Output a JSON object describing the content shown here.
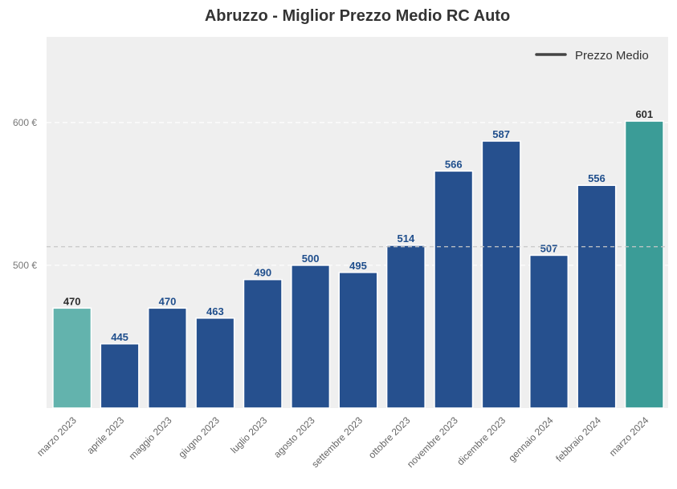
{
  "chart_data": {
    "type": "bar",
    "title": "Abruzzo - Miglior Prezzo Medio RC Auto",
    "xlabel": "",
    "ylabel": "",
    "categories": [
      "marzo 2023",
      "aprile 2023",
      "maggio 2023",
      "giugno 2023",
      "luglio 2023",
      "agosto 2023",
      "settembre 2023",
      "ottobre 2023",
      "novembre 2023",
      "dicembre 2023",
      "gennaio 2024",
      "febbraio 2024",
      "marzo 2024"
    ],
    "values": [
      470,
      445,
      470,
      463,
      490,
      500,
      495,
      514,
      566,
      587,
      507,
      556,
      601
    ],
    "value_labels": [
      "470",
      "445",
      "470",
      "463",
      "490",
      "500",
      "495",
      "514",
      "566",
      "587",
      "507",
      "556",
      "601"
    ],
    "ylim": [
      400,
      660
    ],
    "yticks": [
      500,
      600
    ],
    "ytick_labels": [
      "500 €",
      "600 €"
    ],
    "reference_line": 513,
    "legend": {
      "label": "Prezzo Medio",
      "placement": "top-right"
    },
    "grid": true,
    "colors": {
      "bar": "#26508e",
      "first_bar": "#63b3ad",
      "last_bar": "#3b9c97",
      "label_blue": "#1f4e8c",
      "label_dark": "#2d2d2d",
      "plot_bg": "#efefef",
      "legend_line": "#444444"
    }
  }
}
